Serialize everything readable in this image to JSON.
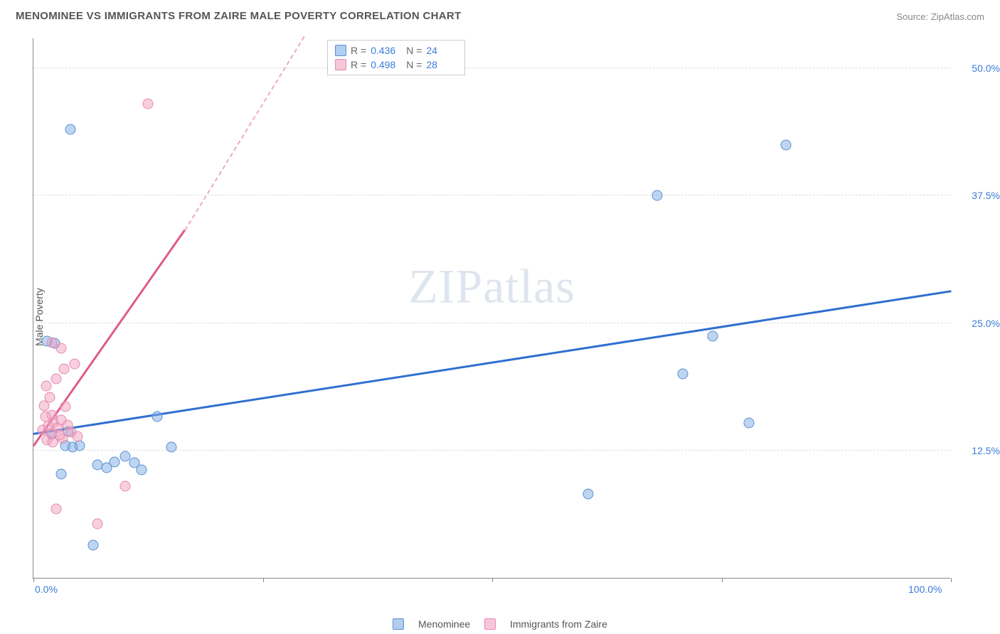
{
  "title": "MENOMINEE VS IMMIGRANTS FROM ZAIRE MALE POVERTY CORRELATION CHART",
  "source_label": "Source: ",
  "source_name": "ZipAtlas.com",
  "ylabel": "Male Poverty",
  "watermark_a": "ZIP",
  "watermark_b": "atlas",
  "chart": {
    "type": "scatter",
    "xlim": [
      0,
      100
    ],
    "ylim": [
      0,
      53
    ],
    "xticks": [
      0,
      25,
      50,
      75,
      100
    ],
    "xtick_labels": [
      "0.0%",
      "",
      "",
      "",
      "100.0%"
    ],
    "yticks": [
      12.5,
      25.0,
      37.5,
      50.0
    ],
    "ytick_labels": [
      "12.5%",
      "25.0%",
      "37.5%",
      "50.0%"
    ],
    "background_color": "#ffffff",
    "grid_color": "#dddddd",
    "axis_color": "#888888",
    "tick_label_color": "#3b7dd8",
    "series": [
      {
        "name": "Menominee",
        "color_fill": "#7dabE5",
        "color_stroke": "#5a8fd0",
        "points": [
          [
            4.0,
            44.0
          ],
          [
            82.0,
            42.5
          ],
          [
            68.0,
            37.5
          ],
          [
            74.0,
            23.7
          ],
          [
            70.8,
            20.0
          ],
          [
            78.0,
            15.2
          ],
          [
            60.5,
            8.2
          ],
          [
            13.5,
            15.8
          ],
          [
            15.0,
            12.8
          ],
          [
            1.5,
            23.2
          ],
          [
            2.3,
            23.0
          ],
          [
            3.5,
            13.0
          ],
          [
            4.3,
            12.8
          ],
          [
            5.0,
            13.0
          ],
          [
            7.0,
            11.1
          ],
          [
            8.0,
            10.8
          ],
          [
            8.8,
            11.4
          ],
          [
            10.0,
            11.9
          ],
          [
            11.0,
            11.3
          ],
          [
            11.8,
            10.6
          ],
          [
            3.0,
            10.2
          ],
          [
            6.5,
            3.2
          ],
          [
            3.8,
            14.4
          ],
          [
            2.0,
            14.1
          ]
        ],
        "trend": {
          "x1": 0,
          "y1": 14.0,
          "x2": 100,
          "y2": 28.0
        },
        "R": 0.436,
        "N": 24
      },
      {
        "name": "Immigrants from Zaire",
        "color_fill": "#f2a0be",
        "color_stroke": "#e48ab0",
        "points": [
          [
            12.5,
            46.5
          ],
          [
            2.0,
            23.1
          ],
          [
            3.0,
            22.5
          ],
          [
            4.5,
            21.0
          ],
          [
            2.5,
            19.5
          ],
          [
            3.3,
            20.5
          ],
          [
            1.4,
            18.8
          ],
          [
            1.8,
            17.7
          ],
          [
            1.2,
            16.9
          ],
          [
            2.2,
            15.3
          ],
          [
            3.7,
            15.0
          ],
          [
            2.0,
            14.2
          ],
          [
            1.0,
            14.5
          ],
          [
            2.6,
            14.7
          ],
          [
            4.1,
            14.3
          ],
          [
            3.2,
            13.7
          ],
          [
            1.5,
            13.5
          ],
          [
            10.0,
            9.0
          ],
          [
            2.5,
            6.8
          ],
          [
            7.0,
            5.3
          ],
          [
            3.0,
            15.5
          ],
          [
            2.0,
            16.0
          ],
          [
            3.5,
            16.8
          ],
          [
            1.6,
            14.9
          ],
          [
            2.9,
            14.0
          ],
          [
            4.8,
            13.9
          ],
          [
            1.3,
            15.8
          ],
          [
            2.1,
            13.3
          ]
        ],
        "trend": {
          "x1": 0,
          "y1": 12.8,
          "x2": 16.5,
          "y2": 34.0
        },
        "trend_dash": {
          "x1": 16.5,
          "y1": 34.0,
          "x2": 29.5,
          "y2": 53.0
        },
        "R": 0.498,
        "N": 28
      }
    ],
    "legend_top": {
      "r_label": "R =",
      "n_label": "N ="
    },
    "legend_bottom": [
      "Menominee",
      "Immigrants from Zaire"
    ]
  }
}
